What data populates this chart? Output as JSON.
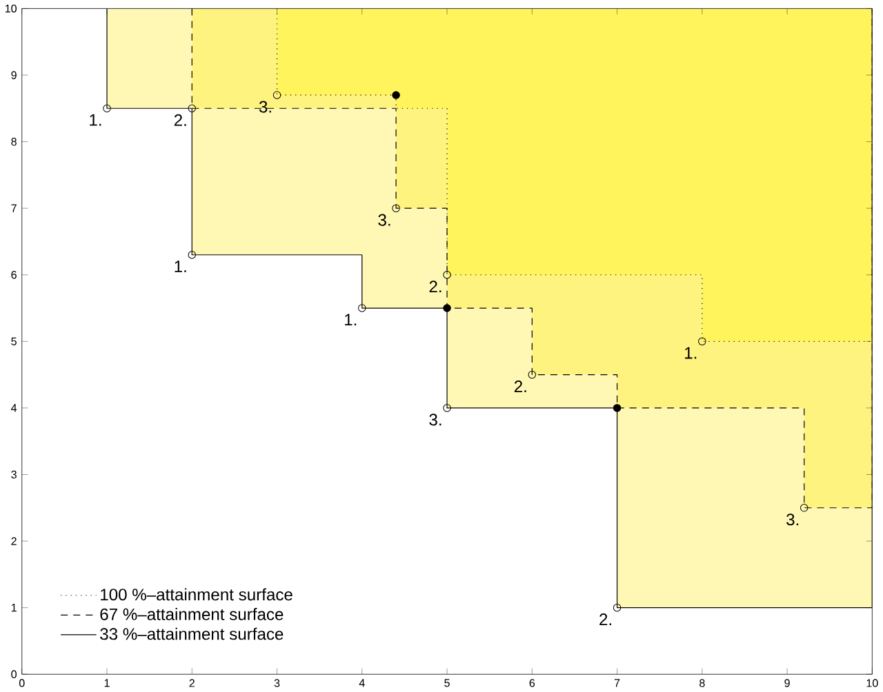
{
  "chart_data": {
    "type": "area",
    "xlim": [
      0,
      10
    ],
    "ylim": [
      0,
      10
    ],
    "xticks": [
      0,
      1,
      2,
      3,
      4,
      5,
      6,
      7,
      8,
      9,
      10
    ],
    "yticks": [
      0,
      1,
      2,
      3,
      4,
      5,
      6,
      7,
      8,
      9,
      10
    ],
    "legend": "bottom left",
    "series": [
      {
        "name": "100 %–attainment surface",
        "color": "#fff45c",
        "line_style": "dotted",
        "x": [
          3,
          3,
          4.4,
          4.4,
          5,
          5,
          8,
          8,
          10,
          10
        ],
        "values": [
          10,
          8.7,
          8.7,
          8.5,
          8.5,
          6,
          6,
          5,
          5,
          10
        ]
      },
      {
        "name": "67 %–attainment surface",
        "color": "#fff380",
        "line_style": "dashed",
        "x": [
          2,
          2,
          4.4,
          4.4,
          5,
          5,
          6,
          6,
          7,
          7,
          9.2,
          9.2,
          10,
          10
        ],
        "values": [
          10,
          8.5,
          8.5,
          7,
          7,
          5.5,
          5.5,
          4.5,
          4.5,
          4,
          4,
          2.5,
          2.5,
          10
        ]
      },
      {
        "name": "33 %–attainment surface",
        "color": "#fff8b4",
        "line_style": "solid",
        "x": [
          1,
          1,
          2,
          2,
          4,
          4,
          5,
          5,
          7,
          7,
          10,
          10
        ],
        "values": [
          10,
          8.5,
          8.5,
          6.3,
          6.3,
          5.5,
          5.5,
          4,
          4,
          1,
          1,
          10
        ]
      },
      {
        "type": "scatter",
        "marker": "circle",
        "x": [
          1,
          2,
          4,
          8,
          2,
          5,
          6,
          7,
          3,
          4.4,
          5,
          9.2
        ],
        "values": [
          8.5,
          6.3,
          5.5,
          5,
          8.5,
          6,
          4.5,
          1,
          8.7,
          7,
          4,
          2.5
        ]
      },
      {
        "type": "scatter",
        "marker": "circle",
        "color": "#000000",
        "x": [
          4.4,
          5,
          7
        ],
        "values": [
          8.7,
          5.5,
          4
        ]
      }
    ],
    "annotations": [
      {
        "text": "1.",
        "x": 1,
        "y": 8.5
      },
      {
        "text": "1.",
        "x": 2,
        "y": 6.3
      },
      {
        "text": "1.",
        "x": 4,
        "y": 5.5
      },
      {
        "text": "1.",
        "x": 8,
        "y": 5
      },
      {
        "text": "2.",
        "x": 2,
        "y": 8.5
      },
      {
        "text": "2.",
        "x": 5,
        "y": 6
      },
      {
        "text": "2.",
        "x": 6,
        "y": 4.5
      },
      {
        "text": "2.",
        "x": 7,
        "y": 1
      },
      {
        "text": "3.",
        "x": 3,
        "y": 8.7
      },
      {
        "text": "3.",
        "x": 4.4,
        "y": 7
      },
      {
        "text": "3.",
        "x": 5,
        "y": 4
      },
      {
        "text": "3.",
        "x": 9.2,
        "y": 2.5
      }
    ]
  }
}
